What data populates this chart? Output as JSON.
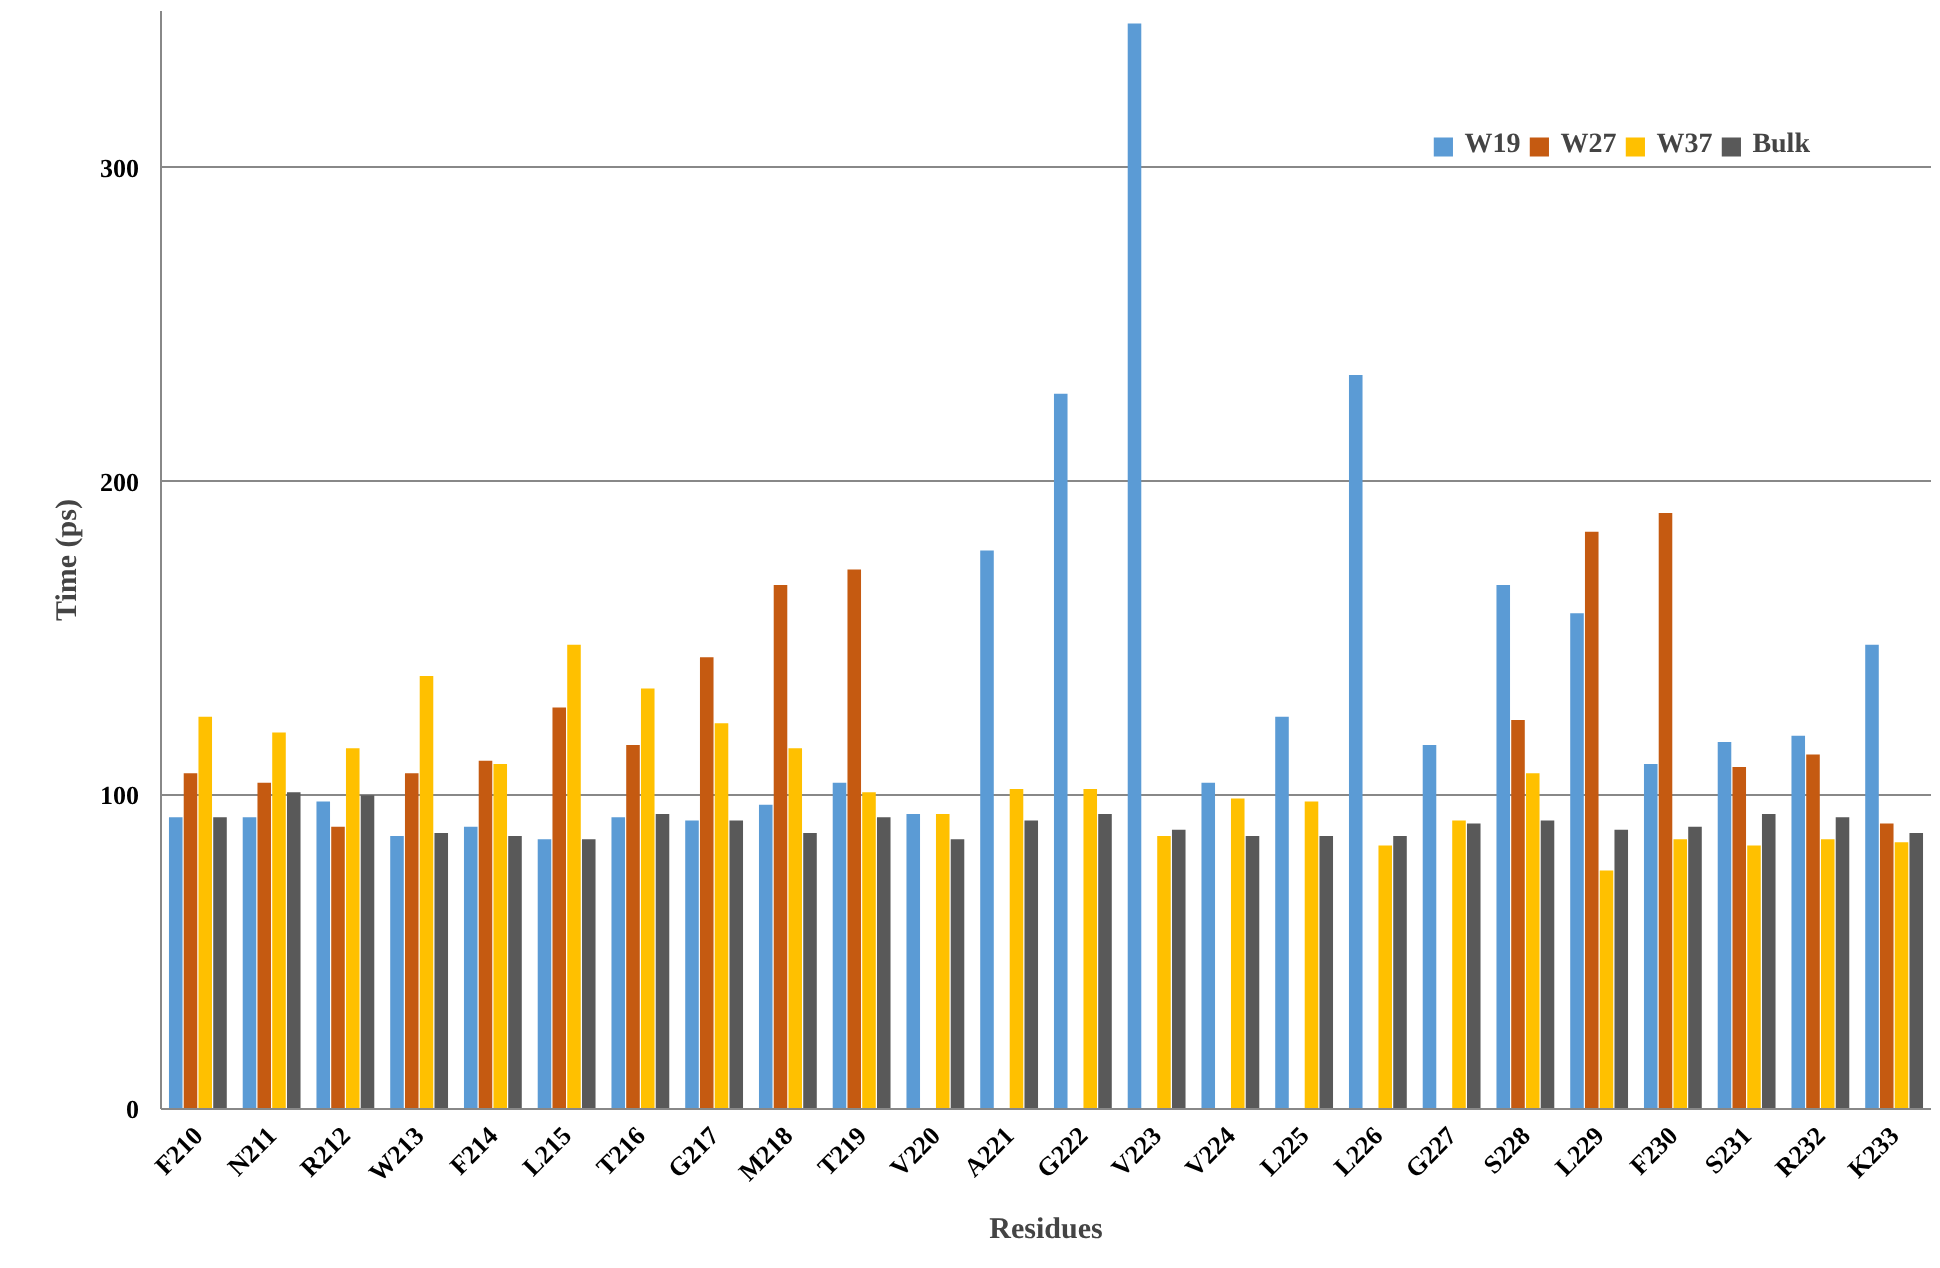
{
  "chart_data": {
    "type": "bar",
    "xlabel": "Residues",
    "ylabel": "Time (ps)",
    "categories": [
      "F210",
      "N211",
      "R212",
      "W213",
      "F214",
      "L215",
      "T216",
      "G217",
      "M218",
      "T219",
      "V220",
      "A221",
      "G222",
      "V223",
      "V224",
      "L225",
      "L226",
      "G227",
      "S228",
      "L229",
      "F230",
      "S231",
      "R232",
      "K233"
    ],
    "series": [
      {
        "name": "W19",
        "color": "#5b9bd5",
        "values": [
          93,
          93,
          98,
          87,
          90,
          86,
          93,
          92,
          97,
          104,
          94,
          178,
          228,
          346,
          104,
          125,
          234,
          116,
          167,
          158,
          110,
          117,
          119,
          148
        ]
      },
      {
        "name": "W27",
        "color": "#c55a11",
        "values": [
          107,
          104,
          90,
          107,
          111,
          128,
          116,
          144,
          167,
          172,
          null,
          null,
          null,
          null,
          null,
          null,
          null,
          null,
          124,
          184,
          190,
          109,
          113,
          91
        ]
      },
      {
        "name": "W37",
        "color": "#ffc000",
        "values": [
          125,
          120,
          115,
          138,
          110,
          148,
          134,
          123,
          115,
          101,
          94,
          102,
          102,
          87,
          99,
          98,
          84,
          92,
          107,
          76,
          86,
          84,
          86,
          85
        ]
      },
      {
        "name": "Bulk",
        "color": "#595959",
        "values": [
          93,
          101,
          100,
          88,
          87,
          86,
          94,
          92,
          88,
          93,
          86,
          92,
          94,
          89,
          87,
          87,
          87,
          91,
          92,
          89,
          90,
          94,
          93,
          88
        ]
      }
    ],
    "ylim": [
      0,
      350
    ],
    "yticks": [
      0,
      100,
      200,
      300
    ],
    "grid": "y",
    "legend": "top right"
  }
}
